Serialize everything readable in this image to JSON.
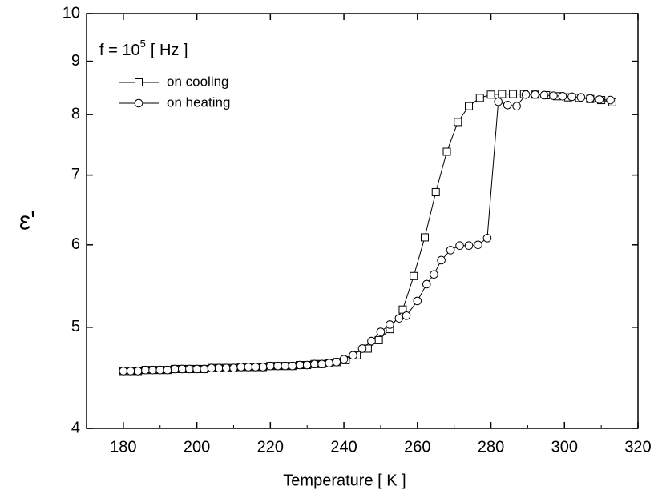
{
  "chart_data": {
    "type": "line",
    "annotation": {
      "text": "f = 10",
      "superscript": "5",
      "suffix": "[ Hz ]"
    },
    "x_label": "Temperature [ K ]",
    "y_label": "ε'",
    "xlim": [
      170,
      320
    ],
    "xticks": [
      180,
      200,
      220,
      240,
      260,
      280,
      300,
      320
    ],
    "ylim": [
      4,
      10
    ],
    "yticks": [
      4,
      5,
      6,
      7,
      8,
      9,
      10
    ],
    "y_scale": "log",
    "legend": "upper left",
    "series": [
      {
        "name": "on cooling",
        "marker": "square",
        "color": "#000000",
        "x": [
          180,
          182,
          184,
          186,
          188,
          190,
          192,
          194,
          196,
          198,
          200,
          202,
          204,
          206,
          208,
          210,
          212,
          214,
          216,
          218,
          220,
          222,
          224,
          226,
          228,
          230,
          232,
          234,
          236,
          238,
          240.5,
          243.5,
          246.5,
          249.5,
          252.5,
          256,
          259,
          262,
          265,
          268,
          271,
          274,
          277,
          280,
          283,
          286,
          289,
          292,
          295,
          298,
          301,
          304,
          307,
          310,
          313
        ],
        "values": [
          4.54,
          4.54,
          4.54,
          4.55,
          4.55,
          4.55,
          4.55,
          4.56,
          4.56,
          4.56,
          4.56,
          4.56,
          4.57,
          4.57,
          4.57,
          4.57,
          4.58,
          4.58,
          4.58,
          4.58,
          4.59,
          4.59,
          4.59,
          4.59,
          4.6,
          4.6,
          4.61,
          4.61,
          4.62,
          4.63,
          4.65,
          4.7,
          4.77,
          4.86,
          4.98,
          5.2,
          5.6,
          6.1,
          6.74,
          7.37,
          7.87,
          8.15,
          8.3,
          8.36,
          8.37,
          8.37,
          8.37,
          8.36,
          8.35,
          8.33,
          8.31,
          8.3,
          8.28,
          8.26,
          8.22
        ]
      },
      {
        "name": "on heating",
        "marker": "circle",
        "color": "#000000",
        "x": [
          180,
          182,
          184,
          186,
          188,
          190,
          192,
          194,
          196,
          198,
          200,
          202,
          204,
          206,
          208,
          210,
          212,
          214,
          216,
          218,
          220,
          222,
          224,
          226,
          228,
          230,
          232,
          234,
          236,
          238,
          240,
          242.5,
          245,
          247.5,
          250,
          252.5,
          255,
          257,
          260,
          262.5,
          264.5,
          266.5,
          269,
          271.5,
          274,
          276.5,
          279,
          282,
          284.5,
          287,
          289.5,
          292,
          294.5,
          297,
          299.5,
          302,
          304.5,
          307,
          309.5,
          312.5
        ],
        "values": [
          4.54,
          4.54,
          4.54,
          4.55,
          4.55,
          4.55,
          4.55,
          4.56,
          4.56,
          4.56,
          4.56,
          4.56,
          4.57,
          4.57,
          4.57,
          4.57,
          4.58,
          4.58,
          4.58,
          4.58,
          4.59,
          4.59,
          4.59,
          4.59,
          4.6,
          4.6,
          4.61,
          4.61,
          4.62,
          4.63,
          4.66,
          4.7,
          4.77,
          4.85,
          4.95,
          5.03,
          5.1,
          5.13,
          5.3,
          5.5,
          5.62,
          5.8,
          5.93,
          5.99,
          5.99,
          6.0,
          6.09,
          8.23,
          8.17,
          8.15,
          8.36,
          8.36,
          8.35,
          8.34,
          8.33,
          8.32,
          8.31,
          8.29,
          8.27,
          8.26
        ]
      }
    ]
  }
}
